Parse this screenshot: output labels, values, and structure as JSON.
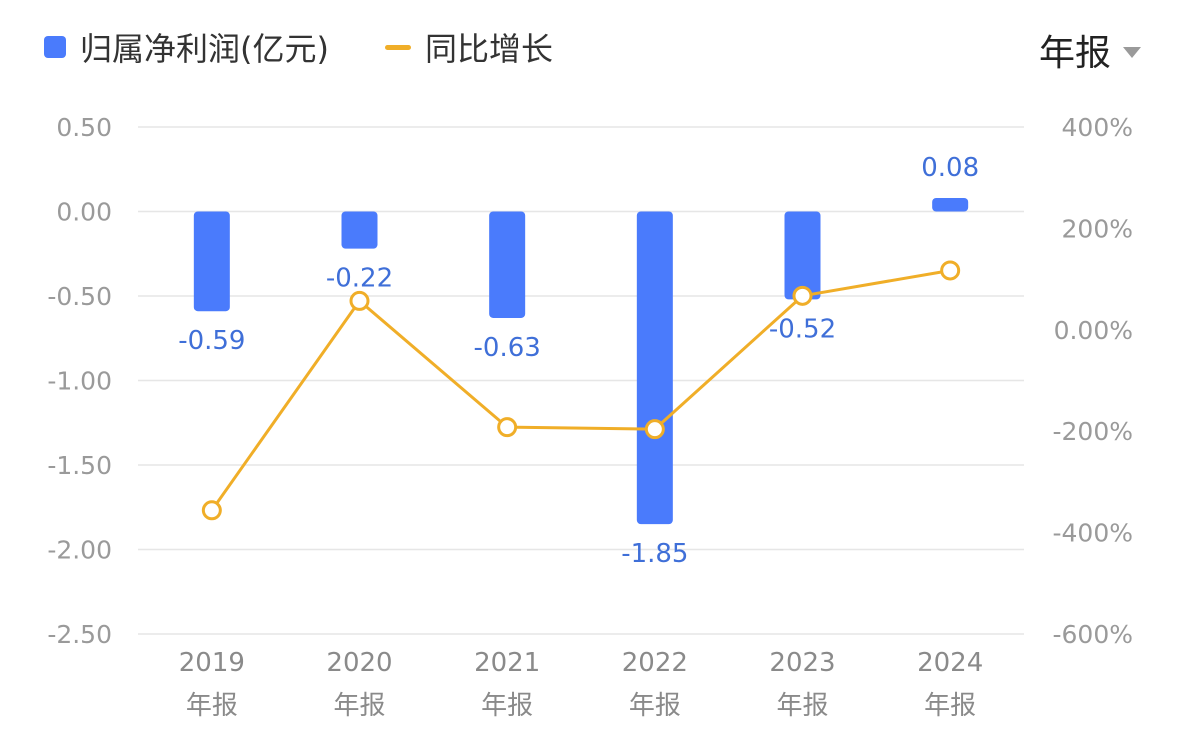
{
  "legend": {
    "bar_label": "归属净利润(亿元)",
    "line_label": "同比增长"
  },
  "period_selector": {
    "label": "年报"
  },
  "colors": {
    "bar": "#4a7bfc",
    "line": "#f0ae28",
    "bar_label": "#3f6fd8",
    "grid": "#e6e6e6",
    "tick": "#9a9a9a"
  },
  "chart_data": {
    "type": "bar+line",
    "categories": [
      [
        "2019",
        "年报"
      ],
      [
        "2020",
        "年报"
      ],
      [
        "2021",
        "年报"
      ],
      [
        "2022",
        "年报"
      ],
      [
        "2023",
        "年报"
      ],
      [
        "2024",
        "年报"
      ]
    ],
    "series": [
      {
        "name": "归属净利润(亿元)",
        "type": "bar",
        "axis": "left",
        "values": [
          -0.59,
          -0.22,
          -0.63,
          -1.85,
          -0.52,
          0.08
        ],
        "labels": [
          "-0.59",
          "-0.22",
          "-0.63",
          "-1.85",
          "-0.52",
          "0.08"
        ]
      },
      {
        "name": "同比增长",
        "type": "line",
        "axis": "right",
        "values": [
          -356,
          57,
          -192,
          -196,
          67,
          117
        ]
      }
    ],
    "left_axis": {
      "ylim": [
        -2.5,
        0.5
      ],
      "ticks": [
        0.5,
        0,
        -0.5,
        -1,
        -1.5,
        -2,
        -2.5
      ],
      "tick_labels": [
        "0.50",
        "0.00",
        "-0.50",
        "-1.00",
        "-1.50",
        "-2.00",
        "-2.50"
      ]
    },
    "right_axis": {
      "ylim": [
        -600,
        400
      ],
      "ticks": [
        400,
        200,
        0,
        -200,
        -400,
        -600
      ],
      "tick_labels": [
        "400%",
        "200%",
        "0.00%",
        "-200%",
        "-400%",
        "-600%"
      ]
    },
    "grid": true,
    "legend_position": "top-left"
  }
}
